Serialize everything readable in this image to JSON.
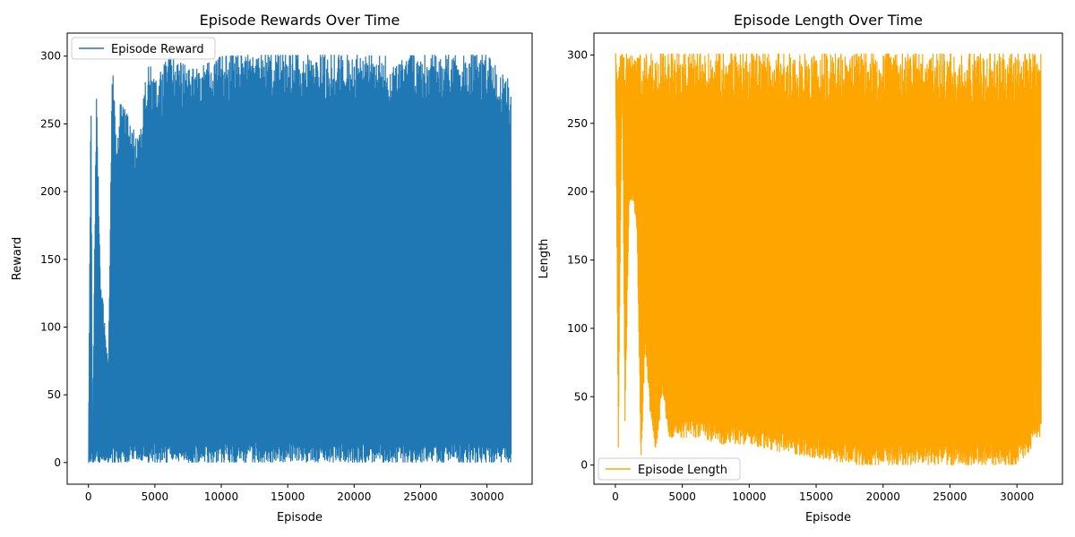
{
  "chart_data": [
    {
      "type": "line",
      "title": "Episode Rewards Over Time",
      "xlabel": "Episode",
      "ylabel": "Reward",
      "xlim": [
        -1600,
        33400
      ],
      "ylim": [
        -16,
        317
      ],
      "xticks": [
        0,
        5000,
        10000,
        15000,
        20000,
        25000,
        30000
      ],
      "yticks": [
        0,
        50,
        100,
        150,
        200,
        250,
        300
      ],
      "legend": "top-left",
      "grid": false,
      "series": [
        {
          "name": "Episode Reward",
          "color": "#1f77b4",
          "episodes": 31800,
          "approx_envelope": {
            "x": [
              0,
              200,
              300,
              600,
              900,
              1200,
              1500,
              1800,
              2100,
              2400,
              2800,
              3200,
              3800,
              4500,
              5000,
              6000,
              8000,
              10000,
              12000,
              15000,
              18000,
              20000,
              23000,
              25000,
              28000,
              30000,
              31800
            ],
            "max": [
              0,
              293,
              0,
              275,
              140,
              108,
              70,
              300,
              236,
              265,
              260,
              250,
              238,
              300,
              280,
              300,
              290,
              300,
              301,
              301,
              301,
              301,
              300,
              301,
              301,
              301,
              281
            ],
            "min": [
              0,
              0,
              0,
              0,
              0,
              0,
              0,
              0,
              0,
              0,
              0,
              0,
              0,
              0,
              0,
              0,
              0,
              0,
              0,
              0,
              0,
              0,
              0,
              0,
              0,
              0,
              0
            ]
          }
        }
      ]
    },
    {
      "type": "line",
      "title": "Episode Length Over Time",
      "xlabel": "Episode",
      "ylabel": "Length",
      "xlim": [
        -1600,
        33400
      ],
      "ylim": [
        -14,
        316
      ],
      "xticks": [
        0,
        5000,
        10000,
        15000,
        20000,
        25000,
        30000
      ],
      "yticks": [
        0,
        50,
        100,
        150,
        200,
        250,
        300
      ],
      "legend": "bottom-left",
      "grid": false,
      "series": [
        {
          "name": "Episode Length",
          "color": "#ffa500",
          "episodes": 31800,
          "approx_envelope": {
            "x": [
              0,
              200,
              500,
              700,
              1000,
              1300,
              1600,
              1900,
              2200,
              2600,
              3000,
              3500,
              4000,
              5000,
              6000,
              8000,
              10000,
              12000,
              15000,
              18000,
              20000,
              23000,
              25000,
              28000,
              30000,
              31800
            ],
            "max": [
              301,
              301,
              301,
              301,
              301,
              301,
              301,
              301,
              301,
              301,
              301,
              301,
              301,
              301,
              301,
              301,
              301,
              301,
              301,
              301,
              301,
              301,
              301,
              301,
              301,
              301
            ],
            "min": [
              301,
              9,
              301,
              27,
              190,
              195,
              172,
              0,
              85,
              37,
              8,
              52,
              20,
              20,
              20,
              15,
              15,
              10,
              5,
              0,
              0,
              0,
              0,
              0,
              0,
              20
            ]
          }
        }
      ]
    }
  ]
}
